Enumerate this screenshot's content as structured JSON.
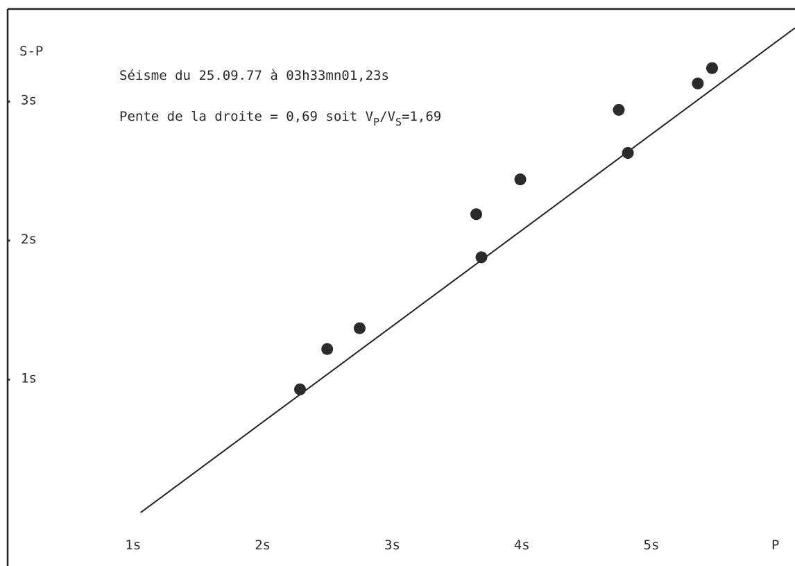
{
  "chart_data": {
    "type": "scatter",
    "title": "Séisme du 25.09.77 à 03h33mn01,23s",
    "subtitle": {
      "prefix": "Pente de la droite = 0,69 soit V",
      "sub1": "P",
      "mid": "/V",
      "sub2": "S",
      "suffix": "=1,69"
    },
    "xlabel": "P",
    "ylabel": "S-P",
    "x_ticks": [
      {
        "value": 1,
        "label": "1s"
      },
      {
        "value": 2,
        "label": "2s"
      },
      {
        "value": 3,
        "label": "3s"
      },
      {
        "value": 4,
        "label": "4s"
      },
      {
        "value": 5,
        "label": "5s"
      }
    ],
    "y_ticks": [
      {
        "value": 1,
        "label": "1s"
      },
      {
        "value": 2,
        "label": "2s"
      },
      {
        "value": 3,
        "label": "3s"
      }
    ],
    "xlim": [
      0.05,
      6.1
    ],
    "ylim": [
      -0.35,
      3.72
    ],
    "grid": false,
    "points": [
      {
        "x": 2.28,
        "y": 0.92
      },
      {
        "x": 2.49,
        "y": 1.21
      },
      {
        "x": 2.74,
        "y": 1.36
      },
      {
        "x": 3.64,
        "y": 2.18
      },
      {
        "x": 3.68,
        "y": 1.87
      },
      {
        "x": 3.98,
        "y": 2.43
      },
      {
        "x": 4.74,
        "y": 2.93
      },
      {
        "x": 4.81,
        "y": 2.62
      },
      {
        "x": 5.35,
        "y": 3.12
      },
      {
        "x": 5.46,
        "y": 3.23
      }
    ],
    "fit_line": {
      "slope": 0.69,
      "x_start": 1.05,
      "x_end": 6.1
    }
  }
}
